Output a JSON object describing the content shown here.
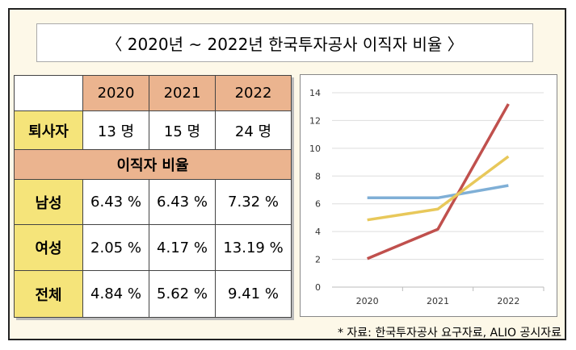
{
  "title": "〈 2020년 ~ 2022년 한국투자공사 이직자 비율 〉",
  "table": {
    "years": [
      "2020",
      "2021",
      "2022"
    ],
    "resign_label": "퇴사자",
    "resign": [
      "13 명",
      "15 명",
      "24 명"
    ],
    "section_label": "이직자 비율",
    "rows": [
      {
        "label": "남성",
        "values": [
          "6.43 %",
          "6.43 %",
          "7.32 %"
        ]
      },
      {
        "label": "여성",
        "values": [
          "2.05 %",
          "4.17 %",
          "13.19 %"
        ]
      },
      {
        "label": "전체",
        "values": [
          "4.84 %",
          "5.62 %",
          "9.41 %"
        ]
      }
    ]
  },
  "chart_data": {
    "type": "line",
    "categories": [
      "2020",
      "2021",
      "2022"
    ],
    "yticks": [
      "0",
      "2",
      "4",
      "6",
      "8",
      "10",
      "12",
      "14"
    ],
    "ylim": [
      0,
      14
    ],
    "grid": true,
    "series": [
      {
        "name": "남성",
        "values": [
          6.43,
          6.43,
          7.32
        ],
        "color": "#7fafd6"
      },
      {
        "name": "여성",
        "values": [
          2.05,
          4.17,
          13.19
        ],
        "color": "#c0504d"
      },
      {
        "name": "전체",
        "values": [
          4.84,
          5.62,
          9.41
        ],
        "color": "#e8c85a"
      }
    ]
  },
  "footnote": "* 자료: 한국투자공사 요구자료, ALIO 공시자료"
}
